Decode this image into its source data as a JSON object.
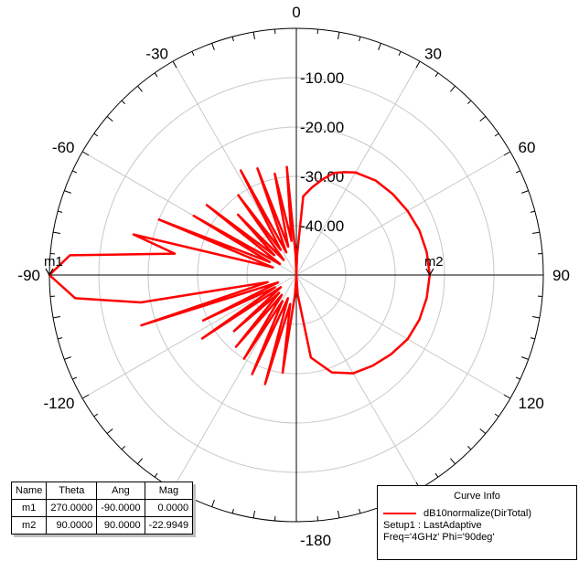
{
  "chart_data": {
    "type": "polar-line",
    "angle_labels": [
      {
        "deg": 0,
        "text": "0"
      },
      {
        "deg": 30,
        "text": "30"
      },
      {
        "deg": 60,
        "text": "60"
      },
      {
        "deg": 90,
        "text": "90"
      },
      {
        "deg": 120,
        "text": "120"
      },
      {
        "deg": -30,
        "text": "-30"
      },
      {
        "deg": -60,
        "text": "-60"
      },
      {
        "deg": -90,
        "text": "-90"
      },
      {
        "deg": -120,
        "text": "-120"
      },
      {
        "deg": 180,
        "text": "-180"
      }
    ],
    "radial_range_db": [
      -50,
      0
    ],
    "radial_ticks": [
      {
        "value": -10,
        "text": "-10.00"
      },
      {
        "value": -20,
        "text": "-20.00"
      },
      {
        "value": -30,
        "text": "-30.00"
      },
      {
        "value": -40,
        "text": "-40.00"
      }
    ],
    "series": [
      {
        "name": "dB10normalize(DirTotal)",
        "color": "#ff0000",
        "points": [
          [
            -90,
            0
          ],
          [
            -85,
            -4
          ],
          [
            -80,
            -25
          ],
          [
            -76,
            -16
          ],
          [
            -72,
            -45
          ],
          [
            -68,
            -20
          ],
          [
            -64,
            -44
          ],
          [
            -60,
            -26
          ],
          [
            -56,
            -46
          ],
          [
            -52,
            -27
          ],
          [
            -48,
            -44
          ],
          [
            -44,
            -33
          ],
          [
            -40,
            -46
          ],
          [
            -36,
            -30
          ],
          [
            -32,
            -44
          ],
          [
            -28,
            -26
          ],
          [
            -24,
            -45
          ],
          [
            -20,
            -27
          ],
          [
            -16,
            -44
          ],
          [
            -12,
            -29
          ],
          [
            -8,
            -43
          ],
          [
            -5,
            -28
          ],
          [
            -2,
            -46
          ],
          [
            0,
            -50
          ],
          [
            2,
            -46
          ],
          [
            5,
            -34
          ],
          [
            10,
            -32
          ],
          [
            15,
            -30
          ],
          [
            20,
            -28
          ],
          [
            25,
            -27
          ],
          [
            30,
            -26
          ],
          [
            40,
            -25
          ],
          [
            50,
            -24.5
          ],
          [
            60,
            -24
          ],
          [
            70,
            -23.5
          ],
          [
            80,
            -23.2
          ],
          [
            90,
            -23
          ],
          [
            100,
            -23.2
          ],
          [
            110,
            -23.5
          ],
          [
            120,
            -24
          ],
          [
            130,
            -25
          ],
          [
            140,
            -26
          ],
          [
            150,
            -27
          ],
          [
            160,
            -29
          ],
          [
            170,
            -33
          ],
          [
            176,
            -46
          ],
          [
            180,
            -50
          ],
          [
            -176,
            -46
          ],
          [
            -172,
            -30
          ],
          [
            -168,
            -44
          ],
          [
            -164,
            -27
          ],
          [
            -160,
            -45
          ],
          [
            -156,
            -28
          ],
          [
            -152,
            -44
          ],
          [
            -148,
            -30
          ],
          [
            -144,
            -45
          ],
          [
            -140,
            -31
          ],
          [
            -136,
            -45
          ],
          [
            -132,
            -33
          ],
          [
            -128,
            -46
          ],
          [
            -124,
            -27
          ],
          [
            -120,
            -45
          ],
          [
            -116,
            -29
          ],
          [
            -112,
            -46
          ],
          [
            -108,
            -17
          ],
          [
            -104,
            -44
          ],
          [
            -100,
            -18
          ],
          [
            -96,
            -5
          ],
          [
            -90,
            0
          ]
        ]
      }
    ],
    "markers": [
      {
        "name": "m1",
        "deg": -90,
        "mag": 0
      },
      {
        "name": "m2",
        "deg": 90,
        "mag": -22.9949
      }
    ],
    "grid": true
  },
  "marker_table": {
    "headers": [
      "Name",
      "Theta",
      "Ang",
      "Mag"
    ],
    "rows": [
      [
        "m1",
        "270.0000",
        "-90.0000",
        "0.0000"
      ],
      [
        "m2",
        "90.0000",
        "90.0000",
        "-22.9949"
      ]
    ]
  },
  "curve_info": {
    "title": "Curve Info",
    "trace_label": "dB10normalize(DirTotal)",
    "setup": "Setup1 : LastAdaptive",
    "params": "Freq='4GHz' Phi='90deg'"
  }
}
